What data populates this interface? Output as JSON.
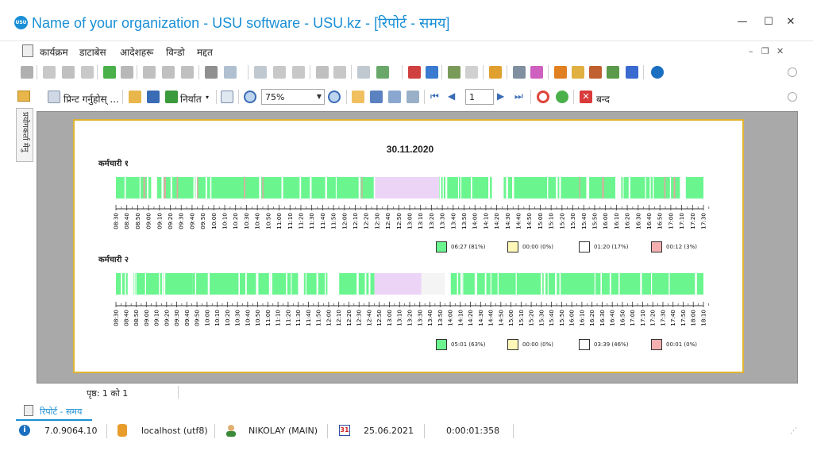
{
  "window": {
    "title": "Name of your organization - USU software - USU.kz - [रिपोर्ट - समय]",
    "logo_text": "USU",
    "minimize": "—",
    "maximize": "☐",
    "close": "✕"
  },
  "menu": {
    "items": [
      "कार्यक्रम",
      "डाटाबेस",
      "आदेशहरू",
      "विन्डो",
      "मद्दत"
    ],
    "mdi_minimize": "–",
    "mdi_restore": "❐",
    "mdi_close": "✕"
  },
  "toolbar2": {
    "print_label": "प्रिन्ट गर्नुहोस् ...",
    "export_label": "निर्यात",
    "zoom_value": "75%",
    "page_value": "1",
    "close_label": "बन्द"
  },
  "side_panel": {
    "label": "प्रयोगकर्ता मेनु"
  },
  "report": {
    "date": "30.11.2020",
    "employees": [
      {
        "name": "कर्मचारी १",
        "ticks": [
          "08:30",
          "08:40",
          "08:50",
          "09:00",
          "09:10",
          "09:20",
          "09:30",
          "09:40",
          "09:50",
          "10:00",
          "10:10",
          "10:20",
          "10:30",
          "10:40",
          "10:50",
          "11:00",
          "11:10",
          "11:20",
          "11:30",
          "11:40",
          "11:50",
          "12:00",
          "12:10",
          "12:20",
          "12:30",
          "12:40",
          "12:50",
          "13:00",
          "13:10",
          "13:20",
          "13:30",
          "13:40",
          "13:50",
          "14:00",
          "14:10",
          "14:20",
          "14:30",
          "14:40",
          "14:50",
          "15:00",
          "15:10",
          "15:20",
          "15:30",
          "15:40",
          "15:50",
          "16:00",
          "16:10",
          "16:20",
          "16:30",
          "16:40",
          "16:50",
          "17:00",
          "17:10",
          "17:20",
          "17:30"
        ],
        "legend": [
          "06:27 (81%)",
          "00:00 (0%)",
          "01:20 (17%)",
          "00:12 (3%)"
        ]
      },
      {
        "name": "कर्मचारी २",
        "ticks": [
          "08:30",
          "08:40",
          "08:50",
          "09:00",
          "09:10",
          "09:20",
          "09:30",
          "09:40",
          "09:50",
          "10:00",
          "10:10",
          "10:20",
          "10:30",
          "10:40",
          "10:50",
          "11:00",
          "11:10",
          "11:20",
          "11:30",
          "11:40",
          "11:50",
          "12:00",
          "12:10",
          "12:20",
          "12:30",
          "12:40",
          "12:50",
          "13:00",
          "13:10",
          "13:20",
          "13:30",
          "13:40",
          "13:50",
          "14:00",
          "14:10",
          "14:20",
          "14:30",
          "14:40",
          "14:50",
          "15:00",
          "15:10",
          "15:20",
          "15:30",
          "15:40",
          "15:50",
          "16:00",
          "16:10",
          "16:20",
          "16:30",
          "16:40",
          "16:50",
          "17:00",
          "17:10",
          "17:20",
          "17:30",
          "17:40",
          "17:50",
          "18:00",
          "18:10"
        ],
        "legend": [
          "05:01 (63%)",
          "00:00 (0%)",
          "03:39 (46%)",
          "00:01 (0%)"
        ]
      }
    ],
    "legend_colors": [
      "#6af58f",
      "#fff7b8",
      "#ffffff",
      "#f4b0b0"
    ],
    "colors": {
      "active": "#6af58f",
      "break": "#ecd4f7",
      "idle": "#f4f4f4",
      "other": "#e0a8a0"
    }
  },
  "pageinfo": "पृष्ठ: 1 को 1",
  "doc_tab": "रिपोर्ट - समय",
  "status": {
    "version": "7.0.9064.10",
    "server": "localhost (utf8)",
    "user": "NIKOLAY (MAIN)",
    "date": "25.06.2021",
    "timer": "0:00:01:358"
  }
}
